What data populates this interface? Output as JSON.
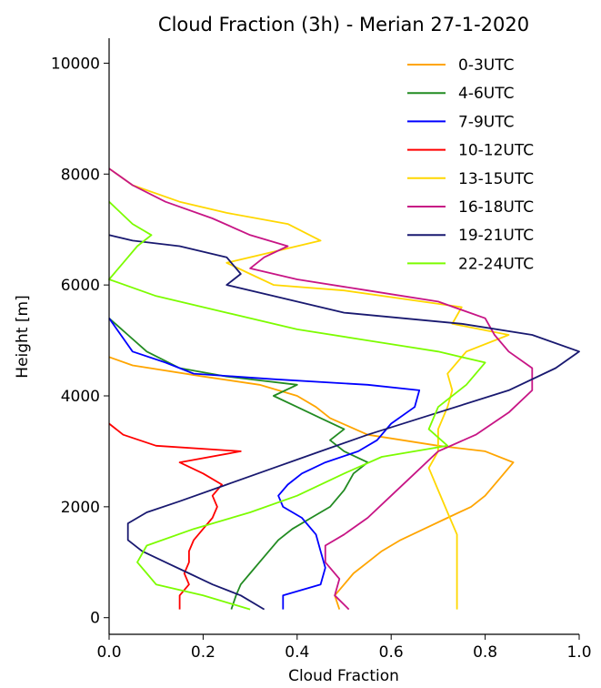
{
  "chart_data": {
    "type": "line",
    "title": "Cloud Fraction (3h) - Merian 27-1-2020",
    "xlabel": "Cloud Fraction",
    "ylabel": "Height [m]",
    "xlim": [
      0.0,
      1.0
    ],
    "ylim": [
      -300,
      10450
    ],
    "x_ticks": [
      "0.0",
      "0.2",
      "0.4",
      "0.6",
      "0.8",
      "1.0"
    ],
    "y_ticks": [
      "0",
      "2000",
      "4000",
      "6000",
      "8000",
      "10000"
    ],
    "grid": false,
    "legend_position": "top-right",
    "series": [
      {
        "name": "0-3UTC",
        "color": "#ffa500",
        "points": [
          [
            0.49,
            150
          ],
          [
            0.48,
            400
          ],
          [
            0.5,
            600
          ],
          [
            0.52,
            800
          ],
          [
            0.55,
            1000
          ],
          [
            0.58,
            1200
          ],
          [
            0.62,
            1400
          ],
          [
            0.67,
            1600
          ],
          [
            0.72,
            1800
          ],
          [
            0.77,
            2000
          ],
          [
            0.8,
            2200
          ],
          [
            0.83,
            2500
          ],
          [
            0.86,
            2800
          ],
          [
            0.8,
            3000
          ],
          [
            0.7,
            3100
          ],
          [
            0.55,
            3300
          ],
          [
            0.47,
            3600
          ],
          [
            0.44,
            3800
          ],
          [
            0.4,
            4000
          ],
          [
            0.32,
            4200
          ],
          [
            0.2,
            4350
          ],
          [
            0.05,
            4550
          ],
          [
            0.0,
            4700
          ]
        ]
      },
      {
        "name": "4-6UTC",
        "color": "#228b22",
        "points": [
          [
            0.26,
            150
          ],
          [
            0.27,
            400
          ],
          [
            0.28,
            600
          ],
          [
            0.3,
            800
          ],
          [
            0.32,
            1000
          ],
          [
            0.34,
            1200
          ],
          [
            0.36,
            1400
          ],
          [
            0.39,
            1600
          ],
          [
            0.43,
            1800
          ],
          [
            0.47,
            2000
          ],
          [
            0.5,
            2300
          ],
          [
            0.52,
            2600
          ],
          [
            0.55,
            2800
          ],
          [
            0.5,
            3000
          ],
          [
            0.47,
            3200
          ],
          [
            0.5,
            3400
          ],
          [
            0.45,
            3600
          ],
          [
            0.4,
            3800
          ],
          [
            0.35,
            4000
          ],
          [
            0.4,
            4200
          ],
          [
            0.25,
            4350
          ],
          [
            0.15,
            4500
          ],
          [
            0.08,
            4800
          ],
          [
            0.04,
            5100
          ],
          [
            0.0,
            5400
          ]
        ]
      },
      {
        "name": "7-9UTC",
        "color": "#0000ff",
        "points": [
          [
            0.37,
            150
          ],
          [
            0.37,
            400
          ],
          [
            0.45,
            600
          ],
          [
            0.46,
            900
          ],
          [
            0.45,
            1200
          ],
          [
            0.44,
            1500
          ],
          [
            0.41,
            1800
          ],
          [
            0.37,
            2000
          ],
          [
            0.36,
            2200
          ],
          [
            0.38,
            2400
          ],
          [
            0.41,
            2600
          ],
          [
            0.46,
            2800
          ],
          [
            0.53,
            3000
          ],
          [
            0.57,
            3200
          ],
          [
            0.6,
            3500
          ],
          [
            0.65,
            3800
          ],
          [
            0.66,
            4100
          ],
          [
            0.55,
            4200
          ],
          [
            0.35,
            4300
          ],
          [
            0.18,
            4400
          ],
          [
            0.12,
            4600
          ],
          [
            0.05,
            4800
          ],
          [
            0.0,
            5400
          ]
        ]
      },
      {
        "name": "10-12UTC",
        "color": "#ff0000",
        "points": [
          [
            0.15,
            150
          ],
          [
            0.15,
            400
          ],
          [
            0.17,
            600
          ],
          [
            0.16,
            800
          ],
          [
            0.17,
            1000
          ],
          [
            0.17,
            1200
          ],
          [
            0.18,
            1400
          ],
          [
            0.2,
            1600
          ],
          [
            0.22,
            1800
          ],
          [
            0.23,
            2000
          ],
          [
            0.22,
            2200
          ],
          [
            0.24,
            2400
          ],
          [
            0.2,
            2600
          ],
          [
            0.15,
            2800
          ],
          [
            0.28,
            3000
          ],
          [
            0.1,
            3100
          ],
          [
            0.03,
            3300
          ],
          [
            0.0,
            3500
          ]
        ]
      },
      {
        "name": "13-15UTC",
        "color": "#ffd700",
        "points": [
          [
            0.74,
            150
          ],
          [
            0.74,
            500
          ],
          [
            0.74,
            1000
          ],
          [
            0.74,
            1500
          ],
          [
            0.72,
            1900
          ],
          [
            0.7,
            2300
          ],
          [
            0.68,
            2700
          ],
          [
            0.7,
            3000
          ],
          [
            0.7,
            3400
          ],
          [
            0.72,
            3800
          ],
          [
            0.73,
            4100
          ],
          [
            0.72,
            4400
          ],
          [
            0.76,
            4800
          ],
          [
            0.85,
            5100
          ],
          [
            0.73,
            5300
          ],
          [
            0.75,
            5600
          ],
          [
            0.5,
            5900
          ],
          [
            0.35,
            6000
          ],
          [
            0.3,
            6200
          ],
          [
            0.25,
            6400
          ],
          [
            0.35,
            6600
          ],
          [
            0.45,
            6800
          ],
          [
            0.38,
            7100
          ],
          [
            0.25,
            7300
          ],
          [
            0.15,
            7500
          ],
          [
            0.05,
            7800
          ],
          [
            0.0,
            8100
          ]
        ]
      },
      {
        "name": "16-18UTC",
        "color": "#c71585",
        "points": [
          [
            0.51,
            150
          ],
          [
            0.48,
            400
          ],
          [
            0.49,
            700
          ],
          [
            0.46,
            1000
          ],
          [
            0.46,
            1300
          ],
          [
            0.5,
            1500
          ],
          [
            0.55,
            1800
          ],
          [
            0.6,
            2200
          ],
          [
            0.65,
            2600
          ],
          [
            0.7,
            3000
          ],
          [
            0.78,
            3300
          ],
          [
            0.85,
            3700
          ],
          [
            0.9,
            4100
          ],
          [
            0.9,
            4500
          ],
          [
            0.85,
            4800
          ],
          [
            0.82,
            5100
          ],
          [
            0.8,
            5400
          ],
          [
            0.7,
            5700
          ],
          [
            0.55,
            5900
          ],
          [
            0.4,
            6100
          ],
          [
            0.3,
            6300
          ],
          [
            0.33,
            6500
          ],
          [
            0.38,
            6700
          ],
          [
            0.3,
            6900
          ],
          [
            0.22,
            7200
          ],
          [
            0.12,
            7500
          ],
          [
            0.05,
            7800
          ],
          [
            0.0,
            8100
          ]
        ]
      },
      {
        "name": "19-21UTC",
        "color": "#191970",
        "points": [
          [
            0.33,
            150
          ],
          [
            0.28,
            400
          ],
          [
            0.22,
            600
          ],
          [
            0.17,
            800
          ],
          [
            0.12,
            1000
          ],
          [
            0.07,
            1200
          ],
          [
            0.04,
            1400
          ],
          [
            0.04,
            1700
          ],
          [
            0.08,
            1900
          ],
          [
            0.15,
            2100
          ],
          [
            0.25,
            2400
          ],
          [
            0.35,
            2700
          ],
          [
            0.45,
            3000
          ],
          [
            0.55,
            3300
          ],
          [
            0.7,
            3700
          ],
          [
            0.85,
            4100
          ],
          [
            0.95,
            4500
          ],
          [
            1.0,
            4800
          ],
          [
            0.9,
            5100
          ],
          [
            0.75,
            5300
          ],
          [
            0.5,
            5500
          ],
          [
            0.35,
            5800
          ],
          [
            0.25,
            6000
          ],
          [
            0.28,
            6200
          ],
          [
            0.25,
            6500
          ],
          [
            0.15,
            6700
          ],
          [
            0.05,
            6800
          ],
          [
            0.0,
            6900
          ]
        ]
      },
      {
        "name": "22-24UTC",
        "color": "#7cfc00",
        "points": [
          [
            0.3,
            150
          ],
          [
            0.2,
            400
          ],
          [
            0.1,
            600
          ],
          [
            0.08,
            800
          ],
          [
            0.06,
            1000
          ],
          [
            0.08,
            1300
          ],
          [
            0.18,
            1600
          ],
          [
            0.3,
            1900
          ],
          [
            0.4,
            2200
          ],
          [
            0.5,
            2600
          ],
          [
            0.58,
            2900
          ],
          [
            0.72,
            3100
          ],
          [
            0.68,
            3400
          ],
          [
            0.7,
            3800
          ],
          [
            0.76,
            4200
          ],
          [
            0.8,
            4600
          ],
          [
            0.7,
            4800
          ],
          [
            0.55,
            5000
          ],
          [
            0.4,
            5200
          ],
          [
            0.25,
            5500
          ],
          [
            0.1,
            5800
          ],
          [
            0.0,
            6100
          ],
          [
            0.03,
            6400
          ],
          [
            0.06,
            6700
          ],
          [
            0.09,
            6900
          ],
          [
            0.05,
            7100
          ],
          [
            0.0,
            7500
          ]
        ]
      }
    ]
  }
}
